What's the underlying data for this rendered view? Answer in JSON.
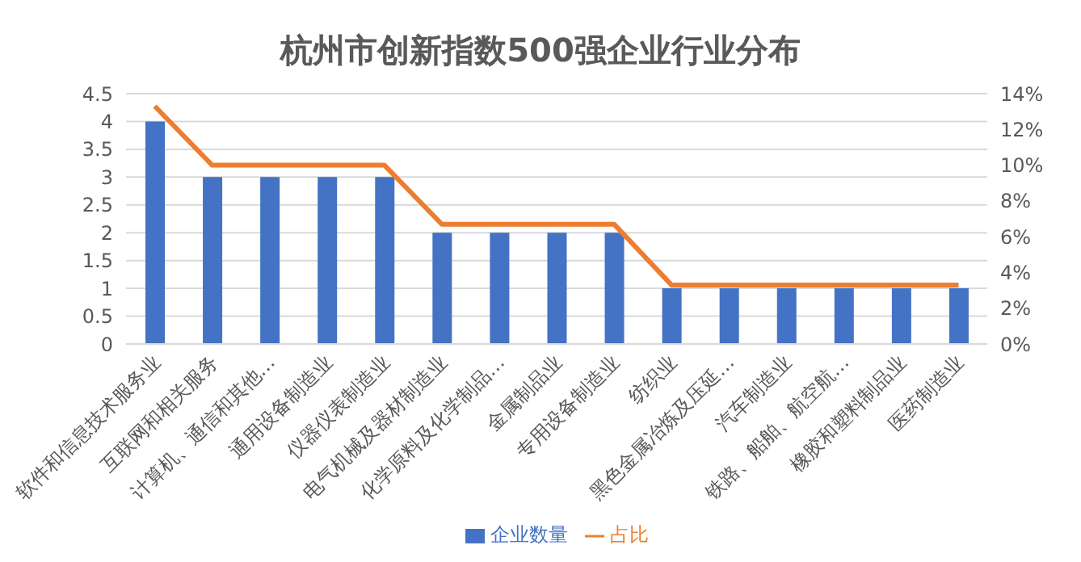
{
  "chart_data": {
    "type": "bar",
    "title": "杭州市创新指数500强企业行业分布",
    "categories": [
      "软件和信息技术服务业",
      "互联网和相关服务",
      "计算机、通信和其他…",
      "通用设备制造业",
      "仪器仪表制造业",
      "电气机械及器材制造业",
      "化学原料及化学制品…",
      "金属制品业",
      "专用设备制造业",
      "纺织业",
      "黑色金属冶炼及压延…",
      "汽车制造业",
      "铁路、船舶、航空航…",
      "橡胶和塑料制品业",
      "医药制造业"
    ],
    "series": [
      {
        "name": "企业数量",
        "color": "#4472c4",
        "values": [
          4,
          3,
          3,
          3,
          3,
          2,
          2,
          2,
          2,
          1,
          1,
          1,
          1,
          1,
          1
        ]
      },
      {
        "name": "占比",
        "type": "line",
        "axis": "y2",
        "color": "#ed7d31",
        "values": [
          13.3,
          10,
          10,
          10,
          10,
          6.7,
          6.7,
          6.7,
          6.7,
          3.3,
          3.3,
          3.3,
          3.3,
          3.3,
          3.3
        ]
      }
    ],
    "ylim": [
      0,
      4.5
    ],
    "yticks": [
      0,
      0.5,
      1,
      1.5,
      2,
      2.5,
      3,
      3.5,
      4,
      4.5
    ],
    "y2lim": [
      0,
      14
    ],
    "y2ticks": [
      {
        "value": 0,
        "label": "0%"
      },
      {
        "value": 2,
        "label": "2%"
      },
      {
        "value": 4,
        "label": "4%"
      },
      {
        "value": 6,
        "label": "6%"
      },
      {
        "value": 8,
        "label": "8%"
      },
      {
        "value": 10,
        "label": "10%"
      },
      {
        "value": 12,
        "label": "12%"
      },
      {
        "value": 14,
        "label": "14%"
      }
    ],
    "grid": "y",
    "legend": "bottom",
    "marker": "none",
    "line_style": "solid"
  }
}
